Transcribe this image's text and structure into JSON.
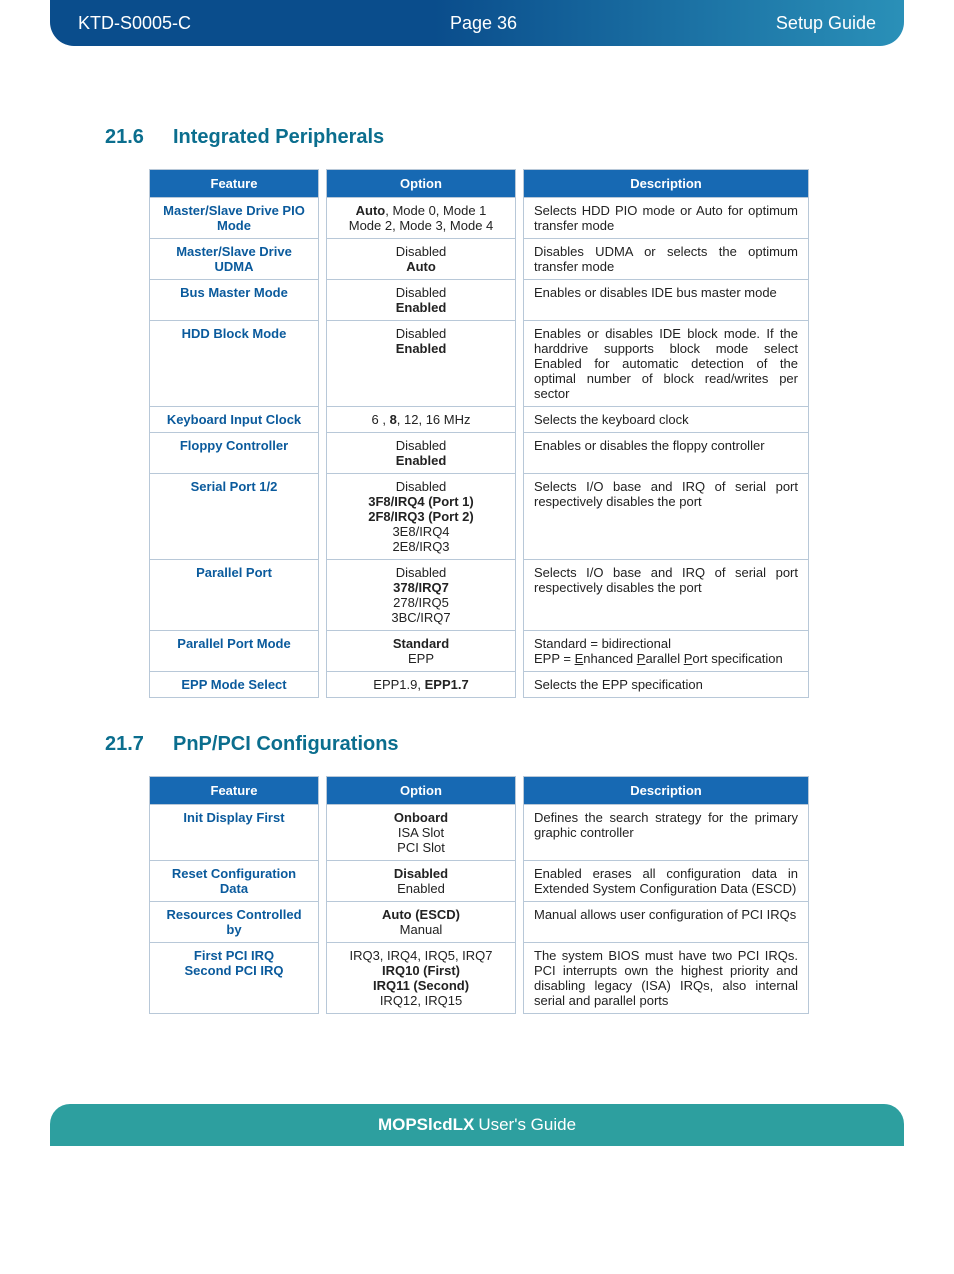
{
  "header": {
    "doc_id": "KTD-S0005-C",
    "page_label": "Page 36",
    "guide_type": "Setup Guide"
  },
  "colors": {
    "banner_gradient_start": "#0a4d8c",
    "banner_gradient_end": "#2a90b8",
    "section_heading": "#0b6e8e",
    "table_header_bg": "#1769b3",
    "table_header_fg": "#ffffff",
    "feature_text": "#0a5a9c",
    "table_border": "#b8c8d8",
    "footer_bg": "#2d9f9f"
  },
  "sections": [
    {
      "number": "21.6",
      "title": "Integrated Peripherals",
      "table": {
        "columns": [
          "Feature",
          "Option",
          "Description"
        ],
        "rows": [
          {
            "feature_lines": [
              "Master/Slave Drive PIO",
              "Mode"
            ],
            "option_lines": [
              {
                "text": "Auto",
                "bold": true,
                "suffix": ", Mode 0, Mode 1"
              },
              {
                "text": "Mode 2, Mode 3, Mode 4"
              }
            ],
            "description": "Selects HDD PIO mode or Auto for optimum transfer mode"
          },
          {
            "feature_lines": [
              "Master/Slave Drive UDMA"
            ],
            "option_lines": [
              {
                "text": "Disabled"
              },
              {
                "text": "Auto",
                "bold": true
              }
            ],
            "description": "Disables UDMA or selects the optimum transfer mode"
          },
          {
            "feature_lines": [
              "Bus Master Mode"
            ],
            "option_lines": [
              {
                "text": "Disabled"
              },
              {
                "text": "Enabled",
                "bold": true
              }
            ],
            "description": "Enables or disables IDE bus master mode"
          },
          {
            "feature_lines": [
              "HDD Block Mode"
            ],
            "option_lines": [
              {
                "text": "Disabled"
              },
              {
                "text": "Enabled",
                "bold": true
              }
            ],
            "description": "Enables or disables IDE block mode. If the harddrive supports block mode select Enabled for automatic detection of the optimal number of block read/writes per sector"
          },
          {
            "feature_lines": [
              "Keyboard Input Clock"
            ],
            "option_lines": [
              {
                "text": "6 , ",
                "bold_mid": "8",
                "suffix": ", 12, 16 MHz"
              }
            ],
            "description": "Selects the keyboard clock"
          },
          {
            "feature_lines": [
              "Floppy Controller"
            ],
            "option_lines": [
              {
                "text": "Disabled"
              },
              {
                "text": "Enabled",
                "bold": true
              }
            ],
            "description": "Enables or disables the floppy controller"
          },
          {
            "feature_lines": [
              "Serial Port 1/2"
            ],
            "option_lines": [
              {
                "text": "Disabled"
              },
              {
                "text": "3F8/IRQ4 (Port 1)",
                "bold": true
              },
              {
                "text": "2F8/IRQ3 (Port 2)",
                "bold": true
              },
              {
                "text": "3E8/IRQ4"
              },
              {
                "text": "2E8/IRQ3"
              }
            ],
            "description": "Selects I/O base and IRQ of serial port respectively disables the port"
          },
          {
            "feature_lines": [
              "Parallel Port"
            ],
            "option_lines": [
              {
                "text": "Disabled"
              },
              {
                "text": "378/IRQ7",
                "bold": true
              },
              {
                "text": "278/IRQ5"
              },
              {
                "text": "3BC/IRQ7"
              }
            ],
            "description": "Selects I/O base and IRQ of serial port respectively disables the port"
          },
          {
            "feature_lines": [
              "Parallel Port Mode"
            ],
            "option_lines": [
              {
                "text": "Standard",
                "bold": true
              },
              {
                "text": "EPP"
              }
            ],
            "description_html": "Standard = bidirectional<br>EPP = <span class='ul'>E</span>nhanced <span class='ul'>P</span>arallel <span class='ul'>P</span>ort specification"
          },
          {
            "feature_lines": [
              "EPP Mode Select"
            ],
            "option_lines": [
              {
                "text": "EPP1.9, ",
                "bold_mid": "EPP1.7"
              }
            ],
            "description": "Selects the EPP specification"
          }
        ]
      }
    },
    {
      "number": "21.7",
      "title": "PnP/PCI Configurations",
      "table": {
        "columns": [
          "Feature",
          "Option",
          "Description"
        ],
        "rows": [
          {
            "feature_lines": [
              "Init Display First"
            ],
            "option_lines": [
              {
                "text": "Onboard",
                "bold": true
              },
              {
                "text": "ISA Slot"
              },
              {
                "text": "PCI Slot"
              }
            ],
            "description": "Defines the search strategy for the primary graphic controller"
          },
          {
            "feature_lines": [
              "Reset Configuration Data"
            ],
            "option_lines": [
              {
                "text": "Disabled",
                "bold": true
              },
              {
                "text": "Enabled"
              }
            ],
            "description": "Enabled erases all configuration data in Extended System Configuration Data (ESCD)"
          },
          {
            "feature_lines": [
              "Resources Controlled by"
            ],
            "option_lines": [
              {
                "text": "Auto (ESCD)",
                "bold": true
              },
              {
                "text": "Manual"
              }
            ],
            "description": "Manual allows user configuration of PCI IRQs"
          },
          {
            "feature_lines": [
              "First PCI IRQ",
              "Second PCI IRQ"
            ],
            "option_lines": [
              {
                "text": "IRQ3, IRQ4, IRQ5, IRQ7"
              },
              {
                "text": "IRQ10 (First)",
                "bold": true
              },
              {
                "text": "IRQ11 (Second)",
                "bold": true
              },
              {
                "text": "IRQ12, IRQ15"
              }
            ],
            "description": "The system BIOS must have two PCI IRQs. PCI interrupts own the highest priority and disabling legacy (ISA) IRQs, also internal serial and parallel ports"
          }
        ]
      }
    }
  ],
  "footer": {
    "bold": "MOPSlcdLX",
    "rest": " User's Guide"
  }
}
